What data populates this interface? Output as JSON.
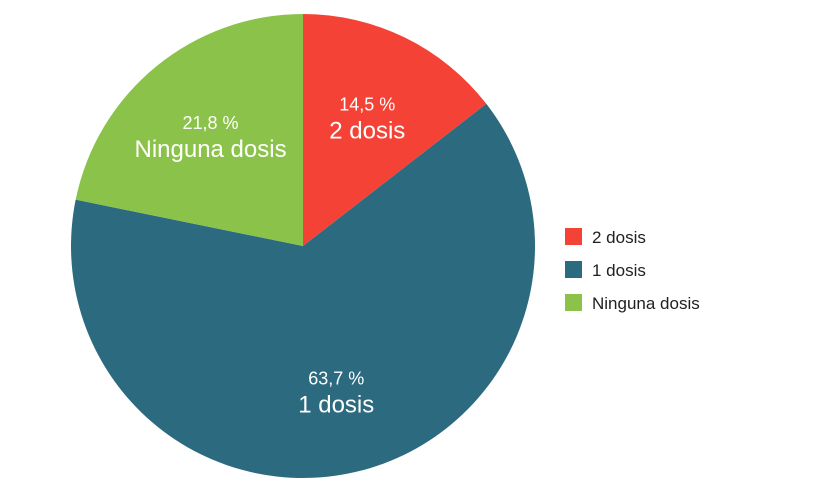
{
  "chart_data": {
    "type": "pie",
    "title": "",
    "slices": [
      {
        "label": "2 dosis",
        "value": 14.5,
        "value_text": "14,5 %",
        "color": "#f44336"
      },
      {
        "label": "1 dosis",
        "value": 63.7,
        "value_text": "63,7 %",
        "color": "#2c6a80"
      },
      {
        "label": "Ninguna dosis",
        "value": 21.8,
        "value_text": "21,8 %",
        "color": "#8bc34a"
      }
    ],
    "start_angle": "top",
    "direction": "clockwise",
    "legend": {
      "position": "right",
      "entries": [
        "2 dosis",
        "1 dosis",
        "Ninguna dosis"
      ]
    }
  }
}
